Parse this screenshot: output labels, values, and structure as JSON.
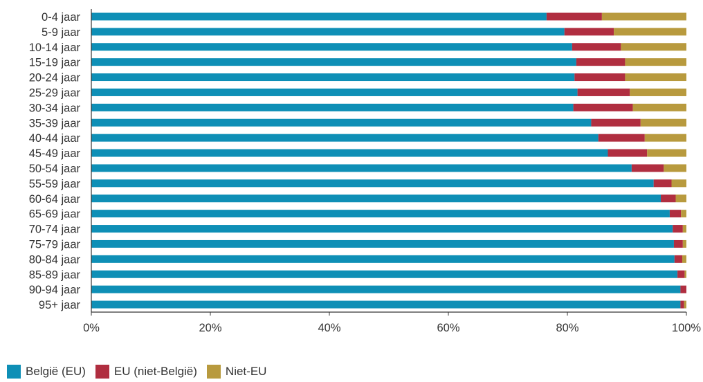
{
  "chart_data": {
    "type": "bar",
    "orientation": "horizontal",
    "stacked": true,
    "title": "",
    "xlabel": "",
    "ylabel": "",
    "xlim": [
      0,
      100
    ],
    "x_ticks": [
      "0%",
      "20%",
      "40%",
      "60%",
      "80%",
      "100%"
    ],
    "grid": false,
    "legend_position": "bottom-left",
    "categories": [
      "0-4 jaar",
      "5-9 jaar",
      "10-14 jaar",
      "15-19 jaar",
      "20-24 jaar",
      "25-29 jaar",
      "30-34 jaar",
      "35-39 jaar",
      "40-44 jaar",
      "45-49 jaar",
      "50-54 jaar",
      "55-59 jaar",
      "60-64 jaar",
      "65-69 jaar",
      "70-74 jaar",
      "75-79 jaar",
      "80-84 jaar",
      "85-89 jaar",
      "90-94 jaar",
      "95+ jaar"
    ],
    "series": [
      {
        "name": "België (EU)",
        "color": "#0e8fb6",
        "values": [
          76.5,
          79.5,
          80.8,
          81.5,
          81.2,
          81.7,
          81.0,
          84.0,
          85.2,
          86.8,
          90.8,
          94.5,
          95.7,
          97.2,
          97.7,
          97.9,
          98.0,
          98.5,
          99.0,
          99.0
        ]
      },
      {
        "name": "EU (niet-België)",
        "color": "#b02e40",
        "values": [
          9.3,
          8.3,
          8.2,
          8.2,
          8.5,
          8.8,
          10.0,
          8.3,
          7.8,
          6.6,
          5.4,
          3.0,
          2.5,
          1.9,
          1.7,
          1.5,
          1.3,
          1.2,
          1.0,
          0.6
        ]
      },
      {
        "name": "Niet-EU",
        "color": "#b89a3e",
        "values": [
          14.2,
          12.2,
          11.0,
          10.3,
          10.3,
          9.5,
          9.0,
          7.7,
          7.0,
          6.6,
          3.8,
          2.5,
          1.8,
          0.9,
          0.6,
          0.6,
          0.7,
          0.3,
          0.0,
          0.4
        ]
      }
    ]
  }
}
